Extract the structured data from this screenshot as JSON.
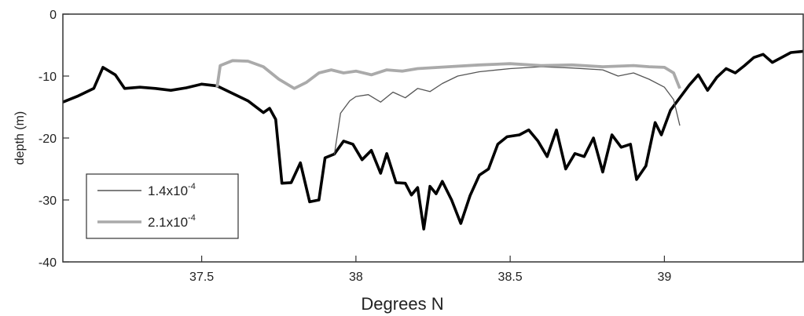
{
  "chart_data": {
    "type": "line",
    "title": "",
    "xlabel": "Degrees N",
    "ylabel": "depth (m)",
    "xlim": [
      37.05,
      39.45
    ],
    "ylim": [
      -40,
      0
    ],
    "x_ticks": [
      37.5,
      38,
      38.5,
      39
    ],
    "x_tick_labels": [
      "37.5",
      "38",
      "38.5",
      "39"
    ],
    "y_ticks": [
      0,
      -10,
      -20,
      -30,
      -40
    ],
    "y_tick_labels": [
      "0",
      "-10",
      "-20",
      "-30",
      "-40"
    ],
    "grid": false,
    "legend_position": "bottom-left",
    "series": [
      {
        "name": "",
        "role": "bathymetry",
        "color": "#000000",
        "points": [
          [
            37.05,
            -14.2
          ],
          [
            37.1,
            -13.2
          ],
          [
            37.15,
            -12.0
          ],
          [
            37.18,
            -8.6
          ],
          [
            37.22,
            -9.8
          ],
          [
            37.25,
            -12.0
          ],
          [
            37.3,
            -11.8
          ],
          [
            37.35,
            -12.0
          ],
          [
            37.4,
            -12.3
          ],
          [
            37.45,
            -11.9
          ],
          [
            37.5,
            -11.3
          ],
          [
            37.55,
            -11.6
          ],
          [
            37.6,
            -12.8
          ],
          [
            37.65,
            -14.0
          ],
          [
            37.7,
            -15.9
          ],
          [
            37.72,
            -15.2
          ],
          [
            37.74,
            -17.0
          ],
          [
            37.76,
            -27.3
          ],
          [
            37.79,
            -27.2
          ],
          [
            37.82,
            -24.0
          ],
          [
            37.85,
            -30.3
          ],
          [
            37.88,
            -30.0
          ],
          [
            37.9,
            -23.2
          ],
          [
            37.93,
            -22.6
          ],
          [
            37.96,
            -20.5
          ],
          [
            37.99,
            -21.0
          ],
          [
            38.02,
            -23.5
          ],
          [
            38.05,
            -22.0
          ],
          [
            38.08,
            -25.7
          ],
          [
            38.1,
            -22.5
          ],
          [
            38.13,
            -27.2
          ],
          [
            38.16,
            -27.3
          ],
          [
            38.18,
            -29.2
          ],
          [
            38.2,
            -28.0
          ],
          [
            38.22,
            -34.7
          ],
          [
            38.24,
            -27.8
          ],
          [
            38.26,
            -29.0
          ],
          [
            38.28,
            -27.0
          ],
          [
            38.31,
            -30.0
          ],
          [
            38.34,
            -33.8
          ],
          [
            38.37,
            -29.3
          ],
          [
            38.4,
            -26.0
          ],
          [
            38.43,
            -25.0
          ],
          [
            38.46,
            -21.0
          ],
          [
            38.49,
            -19.8
          ],
          [
            38.53,
            -19.5
          ],
          [
            38.56,
            -18.7
          ],
          [
            38.59,
            -20.5
          ],
          [
            38.62,
            -23.0
          ],
          [
            38.65,
            -18.7
          ],
          [
            38.68,
            -25.0
          ],
          [
            38.71,
            -22.5
          ],
          [
            38.74,
            -23.0
          ],
          [
            38.77,
            -20.0
          ],
          [
            38.8,
            -25.5
          ],
          [
            38.83,
            -19.5
          ],
          [
            38.86,
            -21.5
          ],
          [
            38.89,
            -21.0
          ],
          [
            38.91,
            -26.7
          ],
          [
            38.94,
            -24.5
          ],
          [
            38.97,
            -17.5
          ],
          [
            38.99,
            -19.5
          ],
          [
            39.02,
            -15.5
          ],
          [
            39.05,
            -13.5
          ],
          [
            39.08,
            -11.5
          ],
          [
            39.11,
            -9.8
          ],
          [
            39.14,
            -12.3
          ],
          [
            39.17,
            -10.2
          ],
          [
            39.2,
            -8.8
          ],
          [
            39.23,
            -9.5
          ],
          [
            39.26,
            -8.3
          ],
          [
            39.29,
            -7.0
          ],
          [
            39.32,
            -6.5
          ],
          [
            39.35,
            -7.8
          ],
          [
            39.38,
            -7.0
          ],
          [
            39.41,
            -6.2
          ],
          [
            39.45,
            -6.0
          ]
        ]
      },
      {
        "name": "1.4x10-4",
        "color": "#555555",
        "points": [
          [
            37.93,
            -22.7
          ],
          [
            37.95,
            -16.0
          ],
          [
            37.98,
            -14.0
          ],
          [
            38.0,
            -13.3
          ],
          [
            38.04,
            -13.0
          ],
          [
            38.08,
            -14.2
          ],
          [
            38.12,
            -12.6
          ],
          [
            38.16,
            -13.5
          ],
          [
            38.2,
            -12.0
          ],
          [
            38.24,
            -12.5
          ],
          [
            38.28,
            -11.2
          ],
          [
            38.33,
            -10.0
          ],
          [
            38.4,
            -9.3
          ],
          [
            38.5,
            -8.8
          ],
          [
            38.6,
            -8.5
          ],
          [
            38.7,
            -8.7
          ],
          [
            38.8,
            -9.0
          ],
          [
            38.85,
            -10.0
          ],
          [
            38.9,
            -9.5
          ],
          [
            38.95,
            -10.5
          ],
          [
            39.0,
            -11.8
          ],
          [
            39.03,
            -13.8
          ],
          [
            39.05,
            -18.0
          ]
        ]
      },
      {
        "name": "2.1x10-4",
        "color": "#aaaaaa",
        "points": [
          [
            37.55,
            -11.8
          ],
          [
            37.56,
            -8.3
          ],
          [
            37.6,
            -7.5
          ],
          [
            37.65,
            -7.6
          ],
          [
            37.7,
            -8.5
          ],
          [
            37.75,
            -10.5
          ],
          [
            37.8,
            -12.0
          ],
          [
            37.84,
            -11.0
          ],
          [
            37.88,
            -9.5
          ],
          [
            37.92,
            -9.0
          ],
          [
            37.96,
            -9.5
          ],
          [
            38.0,
            -9.2
          ],
          [
            38.05,
            -9.8
          ],
          [
            38.1,
            -9.0
          ],
          [
            38.15,
            -9.2
          ],
          [
            38.2,
            -8.8
          ],
          [
            38.3,
            -8.5
          ],
          [
            38.4,
            -8.2
          ],
          [
            38.5,
            -8.0
          ],
          [
            38.6,
            -8.3
          ],
          [
            38.7,
            -8.2
          ],
          [
            38.8,
            -8.5
          ],
          [
            38.9,
            -8.3
          ],
          [
            38.95,
            -8.5
          ],
          [
            39.0,
            -8.6
          ],
          [
            39.03,
            -9.5
          ],
          [
            39.05,
            -12.0
          ]
        ]
      }
    ]
  },
  "legend": {
    "items": [
      {
        "base": "1.4x10",
        "exp": "-4",
        "color": "#555555",
        "width": 1.4
      },
      {
        "base": "2.1x10",
        "exp": "-4",
        "color": "#aaaaaa",
        "width": 3.5
      }
    ]
  }
}
